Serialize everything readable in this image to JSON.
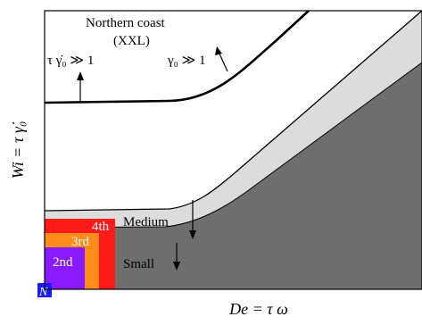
{
  "labels": {
    "region_xxl_line1": "Northern coast",
    "region_xxl_line2": "(XXL)",
    "condition_left": "τ γ̇₀ ≫ 1",
    "condition_right": "γ₀ ≫ 1",
    "region_medium": "Medium",
    "region_small": "Small",
    "y_axis": "Wi = τ γ̇₀",
    "x_axis": "De = τ ω"
  },
  "boxes": [
    {
      "label": "4th",
      "color": "#ff1a1a"
    },
    {
      "label": "3rd",
      "color": "#ff8c1a"
    },
    {
      "label": "2nd",
      "color": "#8a1aff"
    },
    {
      "label": "N",
      "color": "#1a1aff"
    }
  ],
  "colors": {
    "small_region": "#6e6e6e",
    "medium_band": "#dcdcdc",
    "boundary": "#000000"
  }
}
